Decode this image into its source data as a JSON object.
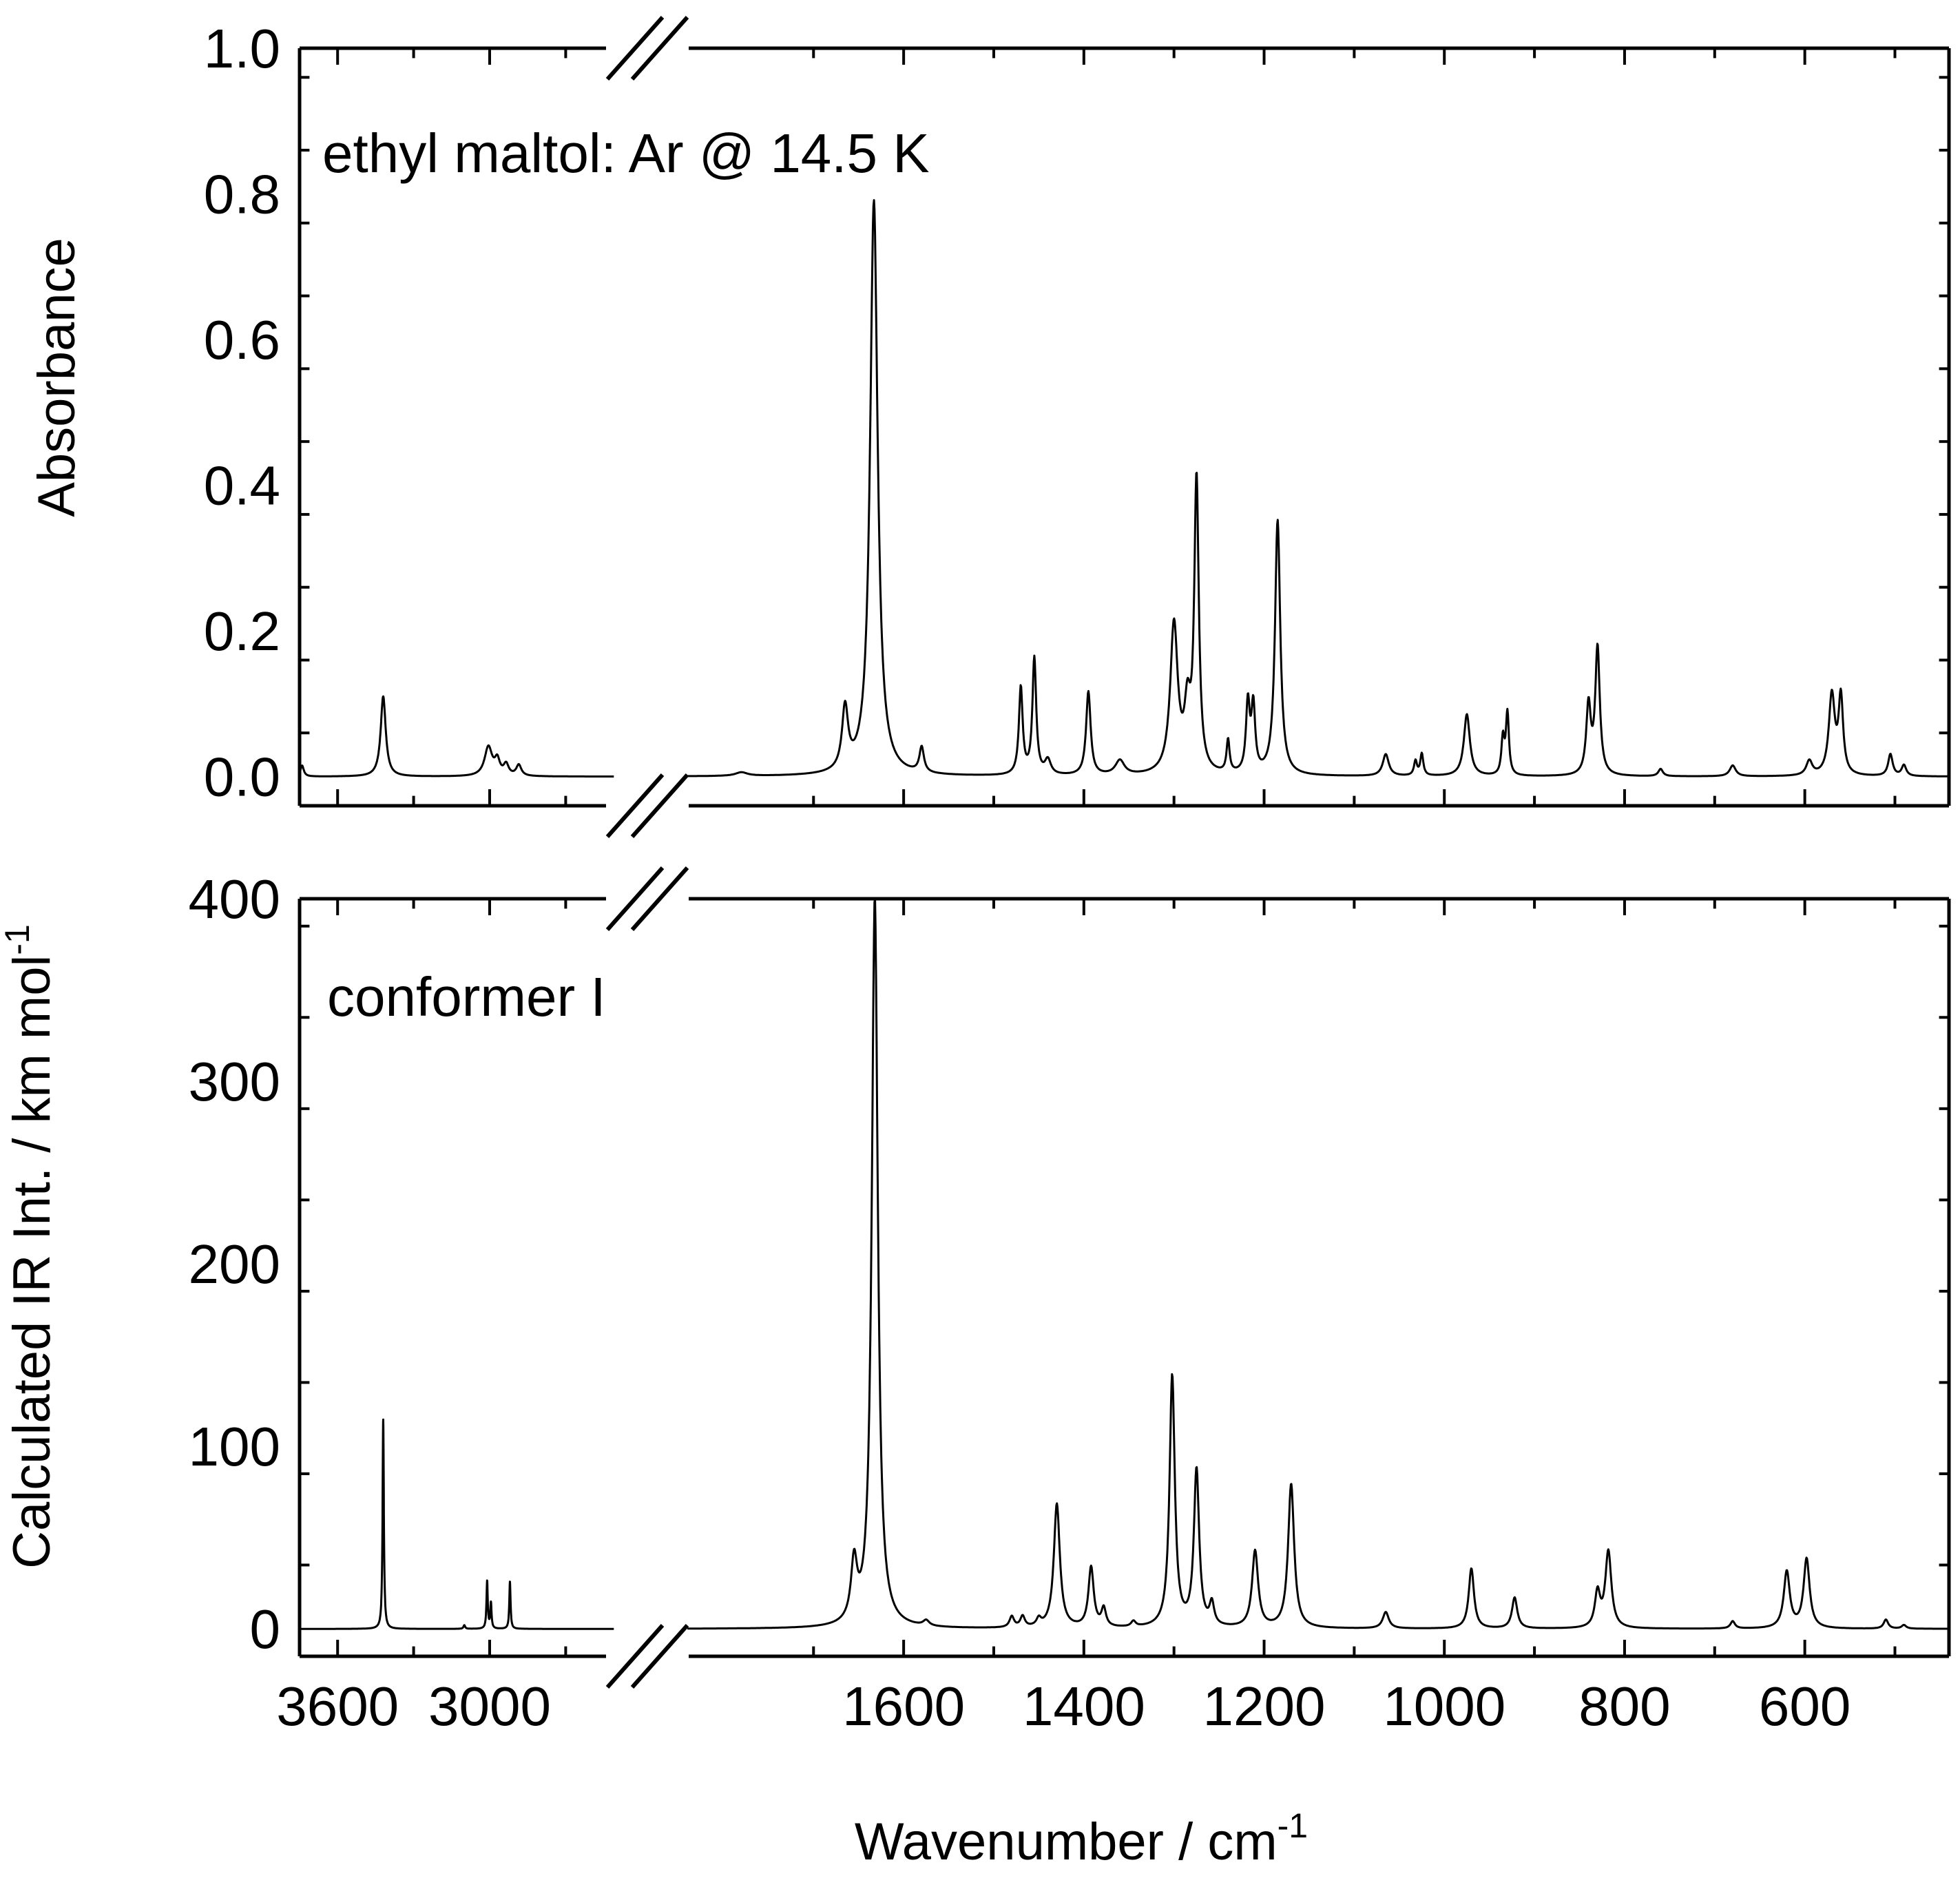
{
  "chart_data": [
    {
      "type": "line",
      "panel": "top",
      "annotation": "ethyl maltol: Ar @ 14.5 K",
      "xlabel": "Wavenumber / cm",
      "xlabel_superscript": "-1",
      "ylabel": "Absorbance",
      "ylim": [
        -0.04,
        1.0
      ],
      "yticks": [
        "0.0",
        "0.2",
        "0.4",
        "0.6",
        "0.8",
        "1.0"
      ],
      "ytick_values": [
        0.0,
        0.2,
        0.4,
        0.6,
        0.8,
        1.0
      ],
      "xaxis": {
        "scale": "broken",
        "segment_high": {
          "xlim": [
            3750,
            2500
          ],
          "ticks": [
            3600,
            3000
          ],
          "ticklabels": [
            "3600",
            "3000"
          ]
        },
        "segment_low": {
          "xlim": [
            1850,
            440
          ],
          "ticks": [
            1600,
            1400,
            1200,
            1000,
            800,
            600
          ],
          "ticklabels": [
            "1600",
            "1400",
            "1200",
            "1000",
            "800",
            "600"
          ]
        }
      },
      "baseline": 0.0,
      "peaks": [
        {
          "x": 3740,
          "y": 0.015,
          "w": 8
        },
        {
          "x": 3420,
          "y": 0.11,
          "w": 12
        },
        {
          "x": 3005,
          "y": 0.04,
          "w": 18
        },
        {
          "x": 2970,
          "y": 0.02,
          "w": 12
        },
        {
          "x": 2935,
          "y": 0.015,
          "w": 12
        },
        {
          "x": 2885,
          "y": 0.015,
          "w": 12
        },
        {
          "x": 1780,
          "y": 0.005,
          "w": 8
        },
        {
          "x": 1665,
          "y": 0.085,
          "w": 4
        },
        {
          "x": 1633,
          "y": 0.79,
          "w": 5
        },
        {
          "x": 1580,
          "y": 0.035,
          "w": 3
        },
        {
          "x": 1470,
          "y": 0.12,
          "w": 2.5
        },
        {
          "x": 1455,
          "y": 0.16,
          "w": 2.5
        },
        {
          "x": 1440,
          "y": 0.02,
          "w": 4
        },
        {
          "x": 1395,
          "y": 0.115,
          "w": 3
        },
        {
          "x": 1360,
          "y": 0.02,
          "w": 6
        },
        {
          "x": 1300,
          "y": 0.205,
          "w": 5
        },
        {
          "x": 1285,
          "y": 0.08,
          "w": 4
        },
        {
          "x": 1275,
          "y": 0.4,
          "w": 3
        },
        {
          "x": 1240,
          "y": 0.045,
          "w": 2
        },
        {
          "x": 1218,
          "y": 0.095,
          "w": 2.5
        },
        {
          "x": 1212,
          "y": 0.09,
          "w": 2.5
        },
        {
          "x": 1185,
          "y": 0.35,
          "w": 3.5
        },
        {
          "x": 1065,
          "y": 0.03,
          "w": 4
        },
        {
          "x": 1032,
          "y": 0.02,
          "w": 2
        },
        {
          "x": 1025,
          "y": 0.03,
          "w": 2
        },
        {
          "x": 975,
          "y": 0.085,
          "w": 4
        },
        {
          "x": 935,
          "y": 0.05,
          "w": 2
        },
        {
          "x": 930,
          "y": 0.085,
          "w": 2
        },
        {
          "x": 840,
          "y": 0.095,
          "w": 3
        },
        {
          "x": 830,
          "y": 0.175,
          "w": 3
        },
        {
          "x": 760,
          "y": 0.01,
          "w": 3
        },
        {
          "x": 680,
          "y": 0.015,
          "w": 4
        },
        {
          "x": 595,
          "y": 0.02,
          "w": 4
        },
        {
          "x": 570,
          "y": 0.11,
          "w": 4
        },
        {
          "x": 560,
          "y": 0.105,
          "w": 3
        },
        {
          "x": 505,
          "y": 0.03,
          "w": 3
        },
        {
          "x": 490,
          "y": 0.015,
          "w": 3
        }
      ]
    },
    {
      "type": "line",
      "panel": "bottom",
      "annotation": "conformer I",
      "xlabel": "Wavenumber / cm",
      "xlabel_superscript": "-1",
      "ylabel": "Calculated IR Int. / km mol",
      "ylabel_superscript": "-1",
      "ylim": [
        -15,
        400
      ],
      "yticks": [
        "0",
        "100",
        "200",
        "300",
        "400"
      ],
      "ytick_values": [
        0,
        100,
        200,
        300,
        400
      ],
      "xaxis": {
        "scale": "broken",
        "segment_high": {
          "xlim": [
            3750,
            2500
          ],
          "ticks": [
            3600,
            3000
          ],
          "ticklabels": [
            "3600",
            "3000"
          ]
        },
        "segment_low": {
          "xlim": [
            1850,
            440
          ],
          "ticks": [
            1600,
            1400,
            1200,
            1000,
            800,
            600
          ],
          "ticklabels": [
            "1600",
            "1400",
            "1200",
            "1000",
            "800",
            "600"
          ]
        }
      },
      "baseline": 0,
      "peaks": [
        {
          "x": 3420,
          "y": 115,
          "w": 3
        },
        {
          "x": 3100,
          "y": 2,
          "w": 4
        },
        {
          "x": 3010,
          "y": 26,
          "w": 3
        },
        {
          "x": 2995,
          "y": 14,
          "w": 3
        },
        {
          "x": 2920,
          "y": 26,
          "w": 3
        },
        {
          "x": 1655,
          "y": 32,
          "w": 4
        },
        {
          "x": 1632,
          "y": 400,
          "w": 4
        },
        {
          "x": 1575,
          "y": 3,
          "w": 4
        },
        {
          "x": 1480,
          "y": 6,
          "w": 3
        },
        {
          "x": 1468,
          "y": 6,
          "w": 3
        },
        {
          "x": 1450,
          "y": 4,
          "w": 3
        },
        {
          "x": 1430,
          "y": 68,
          "w": 4
        },
        {
          "x": 1392,
          "y": 33,
          "w": 3.5
        },
        {
          "x": 1378,
          "y": 10,
          "w": 3
        },
        {
          "x": 1345,
          "y": 3,
          "w": 3
        },
        {
          "x": 1302,
          "y": 138,
          "w": 3.5
        },
        {
          "x": 1275,
          "y": 86,
          "w": 3.5
        },
        {
          "x": 1258,
          "y": 12,
          "w": 3
        },
        {
          "x": 1210,
          "y": 42,
          "w": 4
        },
        {
          "x": 1170,
          "y": 79,
          "w": 4
        },
        {
          "x": 1065,
          "y": 9,
          "w": 4
        },
        {
          "x": 970,
          "y": 33,
          "w": 3.5
        },
        {
          "x": 922,
          "y": 17,
          "w": 3.5
        },
        {
          "x": 830,
          "y": 19,
          "w": 3.5
        },
        {
          "x": 818,
          "y": 42,
          "w": 4
        },
        {
          "x": 680,
          "y": 4,
          "w": 3
        },
        {
          "x": 620,
          "y": 31,
          "w": 4
        },
        {
          "x": 598,
          "y": 38,
          "w": 4
        },
        {
          "x": 510,
          "y": 5,
          "w": 3
        },
        {
          "x": 490,
          "y": 2,
          "w": 3
        }
      ]
    }
  ]
}
